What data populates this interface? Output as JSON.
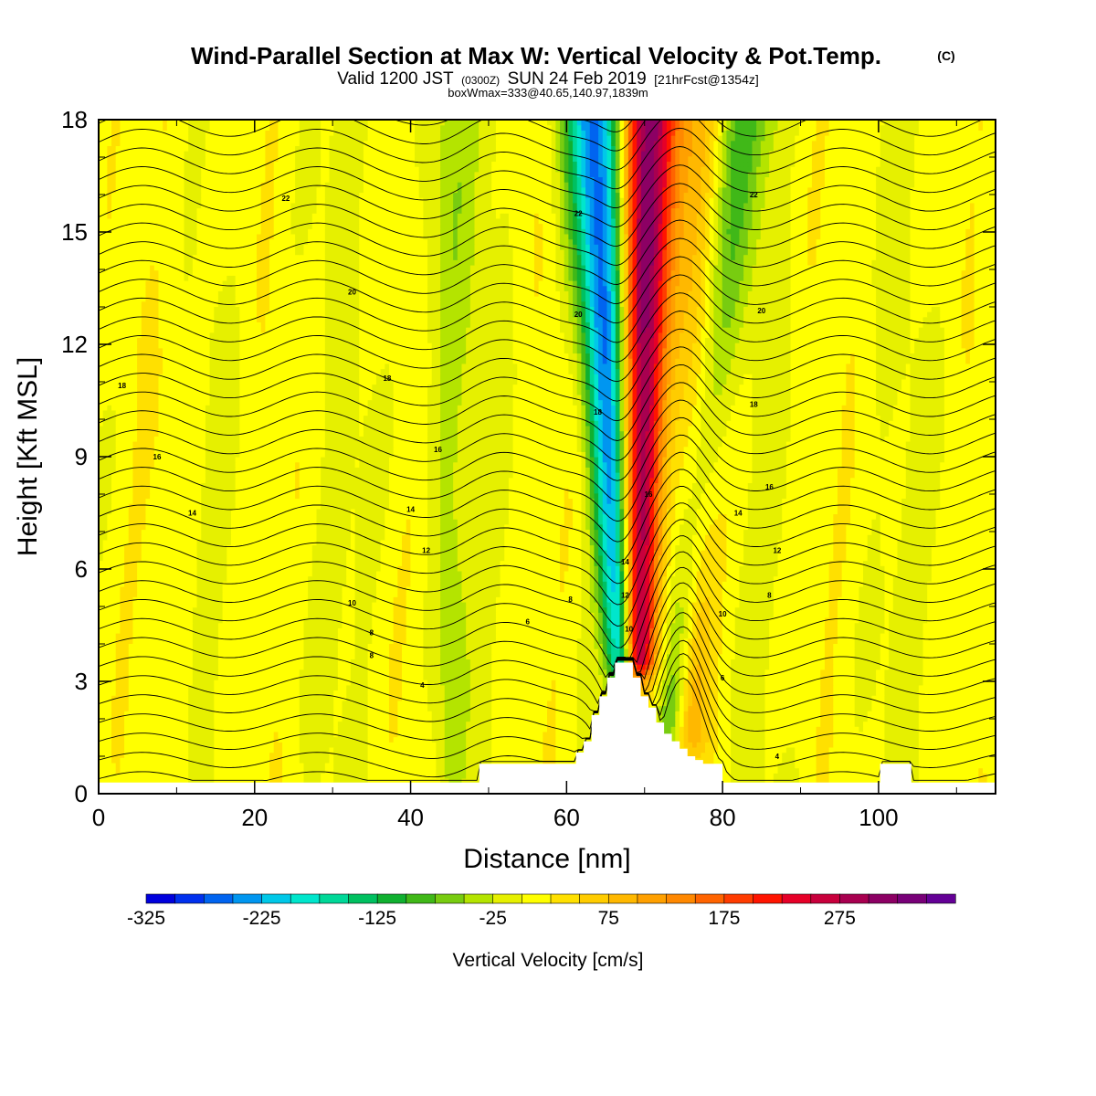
{
  "chart_data": {
    "type": "heatmap",
    "title": "Wind-Parallel Section at Max W: Vertical Velocity & Pot.Temp.",
    "title_mark": "(C)",
    "subtitle_valid": "Valid 1200 JST",
    "subtitle_utc": "(0300Z)",
    "subtitle_date": "SUN 24 Feb 2019",
    "subtitle_fcst": "[21hrFcst@1354z]",
    "subtitle_box": "boxWmax=333@40.65,140.97,1839m",
    "xlabel": "Distance [nm]",
    "ylabel": "Height [Kft MSL]",
    "xlim": [
      0,
      115
    ],
    "ylim": [
      0,
      18
    ],
    "x_ticks": [
      "0",
      "20",
      "40",
      "60",
      "80",
      "100"
    ],
    "y_ticks": [
      "0",
      "3",
      "6",
      "9",
      "12",
      "15",
      "18"
    ],
    "colorbar": {
      "label": "Vertical Velocity [cm/s]",
      "tick_labels": [
        "-325",
        "-225",
        "-125",
        "-25",
        "75",
        "175",
        "275"
      ],
      "colors": [
        "#0000dd",
        "#0030ee",
        "#0064f0",
        "#0096f0",
        "#00c8e8",
        "#00e6cc",
        "#00d898",
        "#00c060",
        "#10b030",
        "#40b818",
        "#78cc10",
        "#b4e400",
        "#e6f000",
        "#ffff00",
        "#ffe000",
        "#ffcc00",
        "#ffb800",
        "#ffa000",
        "#ff8800",
        "#ff6400",
        "#ff3c00",
        "#ff1400",
        "#e60028",
        "#c8003c",
        "#a80050",
        "#8c0064",
        "#780078",
        "#640096"
      ]
    },
    "velocity_features": [
      {
        "kind": "updraft",
        "x_bottom": 69.0,
        "x_top": 70.0,
        "y_bottom": 3.5,
        "y_top": 18,
        "w_cm_s": 333
      },
      {
        "kind": "downdraft",
        "x_bottom": 67.0,
        "x_top": 64.0,
        "y_bottom": 3.5,
        "y_top": 18,
        "w_cm_s": -290
      },
      {
        "kind": "downdraft",
        "x_bottom": 73.0,
        "x_top": 82.0,
        "y_bottom": 1.5,
        "y_top": 18,
        "w_cm_s": -110
      },
      {
        "kind": "updraft",
        "x_bottom": 76.0,
        "x_top": 78.0,
        "y_bottom": 1.5,
        "y_top": 18,
        "w_cm_s": 90
      },
      {
        "kind": "downdraft",
        "x_bottom": 45.0,
        "x_top": 45.0,
        "y_bottom": 0.5,
        "y_top": 18,
        "w_cm_s": -40
      },
      {
        "kind": "updraft",
        "x_bottom": 10.0,
        "x_top": 10.0,
        "y_bottom": 0.3,
        "y_top": 18,
        "w_cm_s": 15
      }
    ],
    "terrain": {
      "x": [
        0,
        48.8,
        48.8,
        61.2,
        61.2,
        62.2,
        62.2,
        63.2,
        63.2,
        64.2,
        64.2,
        65.2,
        65.2,
        66.2,
        66.2,
        68.5,
        68.5,
        69.5,
        69.5,
        70.5,
        70.5,
        71.5,
        71.5,
        72.5,
        72.5,
        73.5,
        73.5,
        74.5,
        74.5,
        75.5,
        75.5,
        76.5,
        76.5,
        77.5,
        77.5,
        80.0,
        80.0,
        100.2,
        100.2,
        104.2,
        104.2,
        115
      ],
      "height_kft": [
        0.3,
        0.3,
        0.8,
        0.8,
        1.1,
        1.1,
        1.4,
        1.4,
        2.1,
        2.1,
        2.6,
        2.6,
        3.1,
        3.1,
        3.5,
        3.5,
        3.1,
        3.1,
        2.6,
        2.6,
        2.3,
        2.3,
        1.9,
        1.9,
        1.6,
        1.6,
        1.4,
        1.4,
        1.2,
        1.2,
        1.0,
        1.0,
        0.9,
        0.9,
        0.8,
        0.8,
        0.3,
        0.3,
        0.8,
        0.8,
        0.3,
        0.3
      ]
    },
    "pot_temp_contours": {
      "interval_c": 1,
      "labels": [
        {
          "text": "22",
          "x": 24,
          "y": 15.9
        },
        {
          "text": "22",
          "x": 61.5,
          "y": 15.5
        },
        {
          "text": "22",
          "x": 84,
          "y": 16.0
        },
        {
          "text": "20",
          "x": 32.5,
          "y": 13.4
        },
        {
          "text": "20",
          "x": 61.5,
          "y": 12.8
        },
        {
          "text": "20",
          "x": 85,
          "y": 12.9
        },
        {
          "text": "18",
          "x": 3,
          "y": 10.9
        },
        {
          "text": "18",
          "x": 37,
          "y": 11.1
        },
        {
          "text": "18",
          "x": 64,
          "y": 10.2
        },
        {
          "text": "18",
          "x": 84,
          "y": 10.4
        },
        {
          "text": "16",
          "x": 7.5,
          "y": 9.0
        },
        {
          "text": "16",
          "x": 43.5,
          "y": 9.2
        },
        {
          "text": "16",
          "x": 70.5,
          "y": 8.0
        },
        {
          "text": "16",
          "x": 86,
          "y": 8.2
        },
        {
          "text": "14",
          "x": 12,
          "y": 7.5
        },
        {
          "text": "14",
          "x": 40,
          "y": 7.6
        },
        {
          "text": "14",
          "x": 67.5,
          "y": 6.2
        },
        {
          "text": "14",
          "x": 82,
          "y": 7.5
        },
        {
          "text": "12",
          "x": 42,
          "y": 6.5
        },
        {
          "text": "12",
          "x": 67.5,
          "y": 5.3
        },
        {
          "text": "12",
          "x": 87,
          "y": 6.5
        },
        {
          "text": "10",
          "x": 32.5,
          "y": 5.1
        },
        {
          "text": "10",
          "x": 68,
          "y": 4.4
        },
        {
          "text": "10",
          "x": 80,
          "y": 4.8
        },
        {
          "text": "8",
          "x": 35,
          "y": 4.3
        },
        {
          "text": "8",
          "x": 35,
          "y": 3.7
        },
        {
          "text": "8",
          "x": 60.5,
          "y": 5.2
        },
        {
          "text": "8",
          "x": 86,
          "y": 5.3
        },
        {
          "text": "6",
          "x": 55,
          "y": 4.6
        },
        {
          "text": "6",
          "x": 80,
          "y": 3.1
        },
        {
          "text": "4",
          "x": 41.5,
          "y": 2.9
        },
        {
          "text": "4",
          "x": 87,
          "y": 1.0
        }
      ]
    }
  }
}
